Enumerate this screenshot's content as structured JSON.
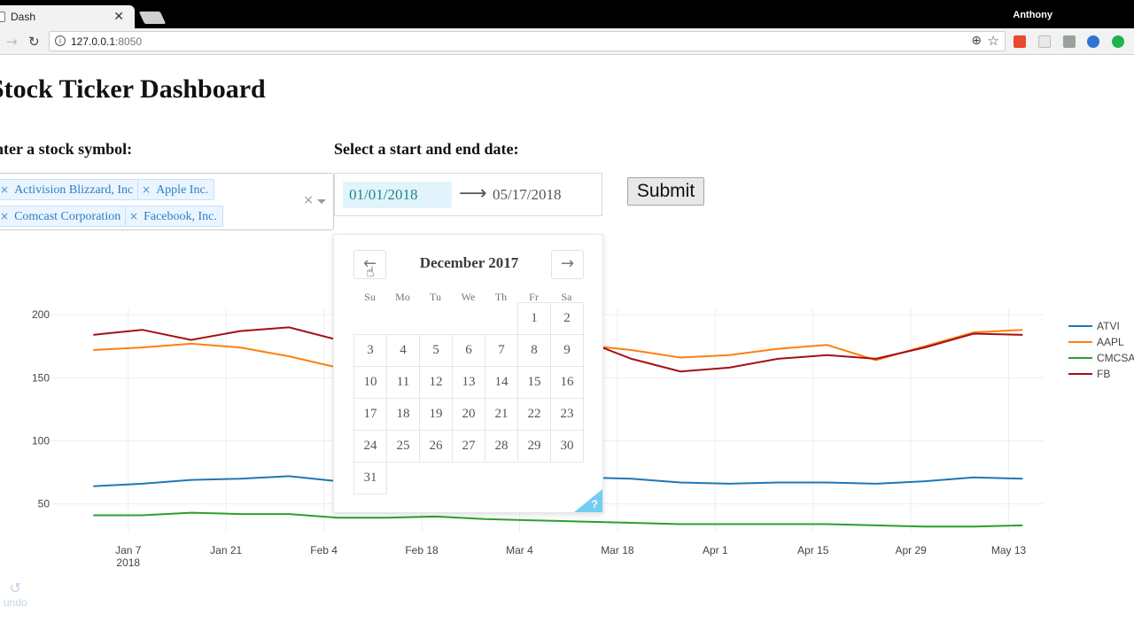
{
  "browser": {
    "tab_title": "Dash",
    "tab_close": "✕",
    "profile_name": "Anthony",
    "url_host": "127.0.0.1",
    "url_port": ":8050"
  },
  "page": {
    "title": "Stock Ticker Dashboard",
    "symbol_label": "Enter a stock symbol:",
    "date_label": "Select a start and end date:",
    "selected_stocks": [
      {
        "label": "Activision Blizzard, Inc"
      },
      {
        "label": "Apple Inc."
      },
      {
        "label": "Comcast Corporation"
      },
      {
        "label": "Facebook, Inc."
      }
    ],
    "start_date": "01/01/2018",
    "end_date": "05/17/2018",
    "submit_label": "Submit",
    "undo_label": "undo"
  },
  "calendar": {
    "month": "December 2017",
    "weekdays": [
      "Su",
      "Mo",
      "Tu",
      "We",
      "Th",
      "Fr",
      "Sa"
    ],
    "first_weekday_index": 5,
    "days_in_month": 31,
    "help": "?"
  },
  "chart_data": {
    "type": "line",
    "x_ticks": [
      "Jan 7\n2018",
      "Jan 21",
      "Feb 4",
      "Feb 18",
      "Mar 4",
      "Mar 18",
      "Apr 1",
      "Apr 15",
      "Apr 29",
      "May 13"
    ],
    "y_ticks": [
      50,
      100,
      150,
      200
    ],
    "x": [
      "2018-01-02",
      "2018-01-09",
      "2018-01-16",
      "2018-01-23",
      "2018-01-30",
      "2018-02-06",
      "2018-02-13",
      "2018-02-20",
      "2018-02-27",
      "2018-03-06",
      "2018-03-13",
      "2018-03-20",
      "2018-03-27",
      "2018-04-03",
      "2018-04-10",
      "2018-04-17",
      "2018-04-24",
      "2018-05-01",
      "2018-05-08",
      "2018-05-15"
    ],
    "ylim": [
      28,
      205
    ],
    "series": [
      {
        "name": "ATVI",
        "color": "#1f77b4",
        "values": [
          64,
          66,
          69,
          70,
          72,
          68,
          70,
          71,
          72,
          72,
          71,
          70,
          67,
          66,
          67,
          67,
          66,
          68,
          71,
          70
        ]
      },
      {
        "name": "AAPL",
        "color": "#ff7f0e",
        "values": [
          172,
          174,
          177,
          174,
          167,
          158,
          165,
          172,
          178,
          176,
          176,
          172,
          166,
          168,
          173,
          176,
          164,
          175,
          186,
          188
        ]
      },
      {
        "name": "CMCSA",
        "color": "#2ca02c",
        "values": [
          41,
          41,
          43,
          42,
          42,
          39,
          39,
          40,
          38,
          37,
          36,
          35,
          34,
          34,
          34,
          34,
          33,
          32,
          32,
          33
        ]
      },
      {
        "name": "FB",
        "color": "#a50f15",
        "values": [
          184,
          188,
          180,
          187,
          190,
          180,
          178,
          180,
          178,
          182,
          180,
          165,
          155,
          158,
          165,
          168,
          165,
          174,
          185,
          184
        ]
      }
    ]
  }
}
